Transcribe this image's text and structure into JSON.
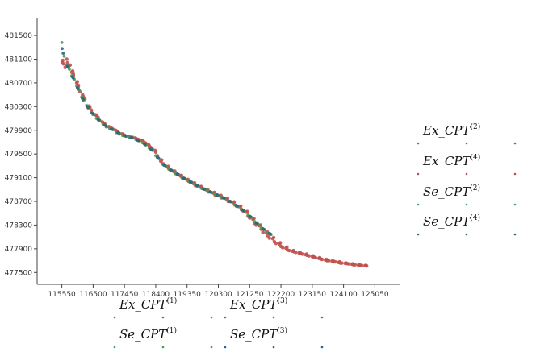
{
  "chart_data": {
    "type": "scatter",
    "title": "",
    "xlabel": "",
    "ylabel": "",
    "xlim": [
      114800,
      125800
    ],
    "ylim": [
      477300,
      481800
    ],
    "x_ticks": [
      115550,
      116500,
      117450,
      118400,
      119350,
      120300,
      121250,
      122200,
      123150,
      124100,
      125050
    ],
    "y_ticks": [
      481500,
      481100,
      480700,
      480300,
      479900,
      479500,
      479100,
      478700,
      478300,
      477900,
      477500
    ],
    "grid": false,
    "series": [
      {
        "name": "Ex_CPT",
        "sup": "(1)",
        "color": "#c0504d",
        "x": [
          115560,
          115700,
          115800,
          115900,
          116000,
          116100,
          116200,
          116350,
          116500,
          116700,
          116900,
          117100,
          117300,
          117500,
          117700,
          117900,
          118100,
          118300,
          118450,
          118600,
          118800,
          119000,
          119200,
          119400,
          119600,
          119800,
          120000,
          120200,
          120400,
          120600,
          120800,
          121000,
          121200,
          121400,
          121600,
          121800,
          122000,
          122200,
          122400,
          122600,
          122800,
          123000,
          123200,
          123400,
          123600,
          123800,
          124000,
          124200,
          124400,
          124600,
          124800
        ],
        "y": [
          481050,
          481100,
          481000,
          480850,
          480700,
          480550,
          480400,
          480280,
          480170,
          480060,
          479960,
          479920,
          479840,
          479800,
          479780,
          479740,
          479680,
          479580,
          479460,
          479340,
          479250,
          479170,
          479100,
          479040,
          478970,
          478920,
          478860,
          478810,
          478760,
          478700,
          478640,
          478560,
          478450,
          478330,
          478230,
          478120,
          478020,
          477940,
          477880,
          477850,
          477820,
          477790,
          477760,
          477730,
          477700,
          477680,
          477660,
          477650,
          477630,
          477620,
          477610
        ]
      },
      {
        "name": "Ex_CPT",
        "sup": "(2)",
        "color": "#c0504d",
        "x": [
          115600,
          115750,
          115900,
          116050,
          116200,
          116400,
          116600,
          116800,
          117000,
          117200,
          117400,
          117600,
          117800,
          118000,
          118200,
          118400,
          118550,
          118750,
          118950,
          119150,
          119350,
          119550,
          119750,
          119950,
          120150,
          120350,
          120550,
          120750,
          120950,
          121150,
          121350,
          121550,
          121750,
          121950,
          122150,
          122350,
          122550,
          122750,
          122950,
          123150,
          123350,
          123550,
          123750,
          123950,
          124150,
          124350,
          124550,
          124750
        ],
        "y": [
          481020,
          480980,
          480820,
          480660,
          480470,
          480290,
          480150,
          480030,
          479950,
          479890,
          479830,
          479790,
          479760,
          479720,
          479640,
          479530,
          479380,
          479280,
          479200,
          479130,
          479060,
          479000,
          478940,
          478890,
          478840,
          478790,
          478740,
          478680,
          478610,
          478520,
          478400,
          478290,
          478170,
          478070,
          477980,
          477910,
          477860,
          477830,
          477800,
          477770,
          477740,
          477710,
          477690,
          477670,
          477655,
          477640,
          477625,
          477615
        ]
      },
      {
        "name": "Ex_CPT",
        "sup": "(3)",
        "color": "#c0504d",
        "x": [
          115650,
          115850,
          116050,
          116250,
          116450,
          116650,
          116850,
          117050,
          117250,
          117450,
          117650,
          117850,
          118050,
          118250,
          118450,
          118650,
          118850,
          119050,
          119250,
          119450,
          119650,
          119850,
          120050,
          120250,
          120450,
          120650,
          120850,
          121050,
          121250,
          121450,
          121650,
          121850,
          122050,
          122250,
          122450,
          122650,
          122850,
          123050,
          123250,
          123450,
          123650,
          123850,
          124050,
          124250,
          124450,
          124650
        ],
        "y": [
          480960,
          480880,
          480640,
          480430,
          480240,
          480120,
          480010,
          479940,
          479870,
          479820,
          479780,
          479750,
          479700,
          479610,
          479470,
          479330,
          479230,
          479160,
          479090,
          479020,
          478960,
          478910,
          478860,
          478810,
          478760,
          478700,
          478620,
          478540,
          478420,
          478300,
          478180,
          478080,
          477990,
          477920,
          477870,
          477840,
          477810,
          477780,
          477750,
          477720,
          477700,
          477680,
          477660,
          477645,
          477630,
          477620
        ]
      },
      {
        "name": "Ex_CPT",
        "sup": "(4)",
        "color": "#c0504d",
        "x": [
          115580,
          115720,
          115880,
          116020,
          116180,
          116380,
          116580,
          116780,
          116980,
          117180,
          117380,
          117580,
          117780,
          117980,
          118180,
          118380,
          118580,
          118780,
          118980,
          119180,
          119380,
          119580,
          119780,
          119980,
          120180,
          120380,
          120580,
          120780,
          120980,
          121180,
          121380,
          121580,
          121780,
          121980,
          122180,
          122380,
          122580,
          122780,
          122980,
          123180,
          123380,
          123580,
          123780,
          123980,
          124180,
          124380,
          124580,
          124780
        ],
        "y": [
          481080,
          481040,
          480900,
          480720,
          480500,
          480310,
          480160,
          480040,
          479960,
          479900,
          479840,
          479800,
          479770,
          479730,
          479660,
          479560,
          479400,
          479290,
          479210,
          479140,
          479070,
          479010,
          478950,
          478900,
          478850,
          478800,
          478750,
          478690,
          478620,
          478530,
          478410,
          478300,
          478190,
          478090,
          478000,
          477930,
          477870,
          477840,
          477810,
          477780,
          477750,
          477720,
          477700,
          477680,
          477660,
          477645,
          477630,
          477620
        ]
      },
      {
        "name": "Se_CPT",
        "sup": "(1)",
        "color": "#4e9a54",
        "x": [
          115550,
          115700,
          115850,
          116000,
          116150,
          116300,
          116450,
          116600,
          116800,
          117000,
          117200,
          117400,
          117600,
          117800,
          118000,
          118200,
          118400,
          118600,
          118800,
          119000,
          119200,
          119400,
          119600,
          119800,
          120000,
          120200,
          120400,
          120600,
          120800,
          121000,
          121200,
          121400,
          121600,
          121800
        ],
        "y": [
          481380,
          481000,
          480820,
          480650,
          480460,
          480320,
          480200,
          480100,
          480000,
          479930,
          479860,
          479810,
          479780,
          479740,
          479690,
          479600,
          479470,
          479330,
          479240,
          479170,
          479100,
          479040,
          478980,
          478920,
          478870,
          478820,
          478770,
          478710,
          478640,
          478570,
          478470,
          478360,
          478260,
          478170
        ]
      },
      {
        "name": "Se_CPT",
        "sup": "(2)",
        "color": "#4e9a54",
        "x": [
          115620,
          115780,
          115930,
          116080,
          116230,
          116380,
          116530,
          116700,
          116900,
          117100,
          117300,
          117500,
          117700,
          117900,
          118100,
          118300,
          118500,
          118700,
          118900,
          119100,
          119300,
          119500,
          119700,
          119900,
          120100,
          120300,
          120500,
          120700,
          120900,
          121100,
          121300,
          121500,
          121700,
          121900
        ],
        "y": [
          481150,
          480930,
          480760,
          480580,
          480400,
          480280,
          480170,
          480070,
          479970,
          479910,
          479850,
          479800,
          479770,
          479720,
          479650,
          479560,
          479420,
          479300,
          479220,
          479150,
          479080,
          479020,
          478960,
          478900,
          478850,
          478800,
          478750,
          478690,
          478610,
          478530,
          478430,
          478320,
          478220,
          478140
        ]
      },
      {
        "name": "Se_CPT",
        "sup": "(3)",
        "color": "#2a5ea0",
        "x": [
          115560,
          115720,
          115870,
          116020,
          116170,
          116320,
          116470,
          116650,
          116850,
          117050,
          117250,
          117450,
          117650,
          117850,
          118050,
          118250,
          118450,
          118650,
          118850,
          119050,
          119250,
          119450,
          119650,
          119850,
          120050,
          120250,
          120450,
          120650,
          120850,
          121050,
          121250,
          121450,
          121650,
          121850
        ],
        "y": [
          481280,
          480980,
          480800,
          480620,
          480440,
          480300,
          480190,
          480080,
          479990,
          479920,
          479860,
          479810,
          479780,
          479730,
          479670,
          479580,
          479440,
          479310,
          479230,
          479160,
          479090,
          479030,
          478970,
          478910,
          478860,
          478810,
          478760,
          478700,
          478630,
          478550,
          478450,
          478340,
          478240,
          478160
        ]
      },
      {
        "name": "Se_CPT",
        "sup": "(4)",
        "color": "#2e6b6b",
        "x": [
          115590,
          115750,
          115900,
          116050,
          116200,
          116350,
          116500,
          116680,
          116880,
          117080,
          117280,
          117480,
          117680,
          117880,
          118080,
          118280,
          118480,
          118680,
          118880,
          119080,
          119280,
          119480,
          119680,
          119880,
          120080,
          120280,
          120480,
          120680,
          120880,
          121080,
          121280,
          121480,
          121680,
          121880
        ],
        "y": [
          481200,
          480960,
          480780,
          480600,
          480420,
          480290,
          480180,
          480075,
          479980,
          479915,
          479855,
          479805,
          479775,
          479725,
          479660,
          479570,
          479430,
          479305,
          479225,
          479155,
          479085,
          479025,
          478965,
          478905,
          478855,
          478805,
          478755,
          478695,
          478620,
          478540,
          478440,
          478330,
          478230,
          478150
        ]
      }
    ]
  }
}
